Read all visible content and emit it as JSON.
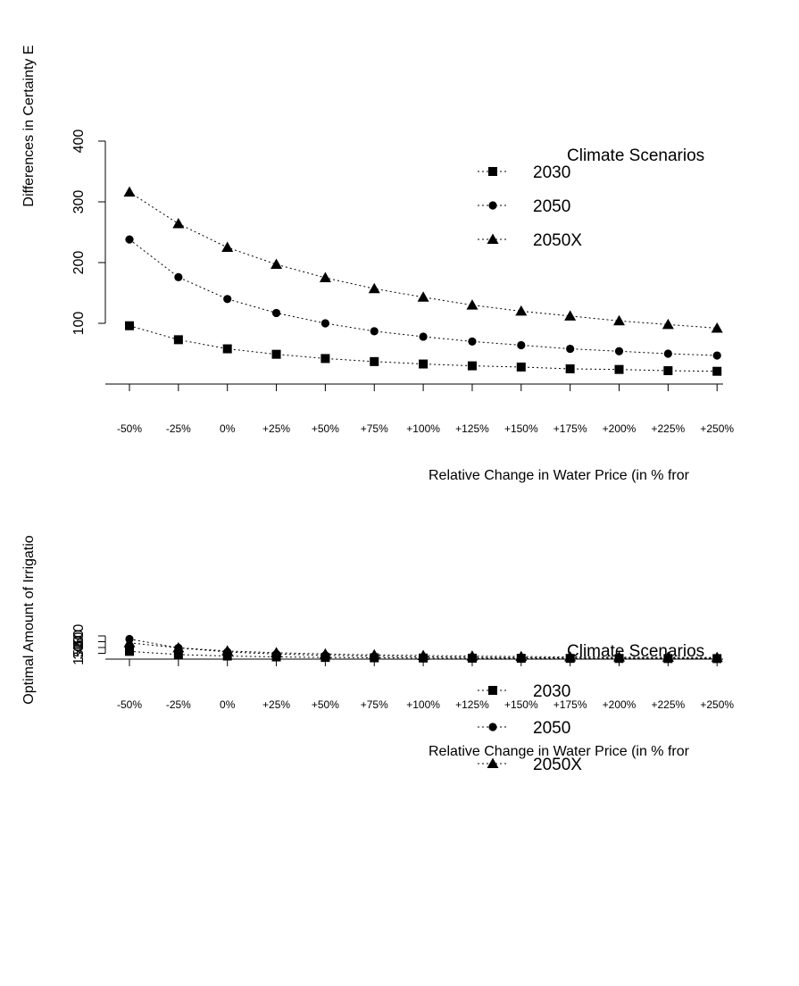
{
  "chart_data": [
    {
      "type": "line",
      "ylabel": "Differences in Certainty E",
      "xlabel": "Relative Change in Water Price (in % fror",
      "categories": [
        "-50%",
        "-25%",
        "0%",
        "+25%",
        "+50%",
        "+75%",
        "+100%",
        "+125%",
        "+150%",
        "+175%",
        "+200%",
        "+225%",
        "+250%"
      ],
      "yticks": [
        "100",
        "200",
        "300",
        "400"
      ],
      "ylim": [
        0,
        400
      ],
      "legend_title": "Climate Scenarios",
      "series": [
        {
          "name": "2030",
          "marker": "square",
          "values": [
            96,
            73,
            58,
            49,
            42,
            37,
            33,
            30,
            28,
            25,
            24,
            22,
            21
          ]
        },
        {
          "name": "2050",
          "marker": "circle",
          "values": [
            238,
            176,
            140,
            117,
            100,
            87,
            78,
            70,
            64,
            58,
            54,
            50,
            47
          ]
        },
        {
          "name": "2050X",
          "marker": "triangle",
          "values": [
            316,
            264,
            225,
            197,
            175,
            157,
            143,
            130,
            120,
            112,
            104,
            98,
            92
          ]
        }
      ]
    },
    {
      "type": "line",
      "ylabel": "Optimal Amount of Irrigatio",
      "xlabel": "Relative Change in Water Price (in % fror",
      "categories": [
        "-50%",
        "-25%",
        "0%",
        "+25%",
        "+50%",
        "+75%",
        "+100%",
        "+125%",
        "+150%",
        "+175%",
        "+200%",
        "+225%",
        "+250%"
      ],
      "yticks": [
        "150",
        "300",
        "450",
        "600"
      ],
      "ylim": [
        0,
        600
      ],
      "legend_title": "Climate Scenarios",
      "series": [
        {
          "name": "2030",
          "marker": "square",
          "values": [
            200,
            118,
            80,
            57,
            43,
            34,
            28,
            24,
            21,
            19,
            17,
            15,
            14
          ]
        },
        {
          "name": "2050",
          "marker": "circle",
          "values": [
            520,
            290,
            185,
            132,
            98,
            75,
            58,
            46,
            38,
            32,
            28,
            25,
            23
          ]
        },
        {
          "name": "2050X",
          "marker": "triangle",
          "values": [
            420,
            292,
            210,
            165,
            133,
            110,
            92,
            78,
            67,
            58,
            51,
            46,
            42
          ]
        }
      ]
    }
  ]
}
